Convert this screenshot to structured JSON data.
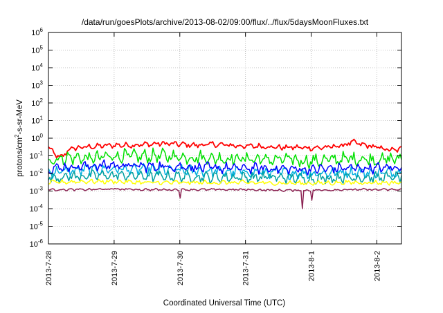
{
  "chart_data": {
    "type": "line",
    "title": "/data/run/goesPlots/archive/2013-08-02/09:00/flux/../flux/5daysMoonFluxes.txt",
    "xlabel": "Coordinated Universal Time (UTC)",
    "ylabel": {
      "base": "protons/cm",
      "sup": "2",
      "rest": "-s-sr-MeV"
    },
    "yscale": "log",
    "ylim": [
      1e-06,
      1000000.0
    ],
    "xlim": [
      "2013-07-28 00:00",
      "2013-08-02 09:00"
    ],
    "grid": true,
    "legend": "none",
    "y_ticks": [
      {
        "base": "10",
        "exp": "-6"
      },
      {
        "base": "10",
        "exp": "-5"
      },
      {
        "base": "10",
        "exp": "-4"
      },
      {
        "base": "10",
        "exp": "-3"
      },
      {
        "base": "10",
        "exp": "-2"
      },
      {
        "base": "10",
        "exp": "-1"
      },
      {
        "base": "10",
        "exp": "0"
      },
      {
        "base": "10",
        "exp": "1"
      },
      {
        "base": "10",
        "exp": "2"
      },
      {
        "base": "10",
        "exp": "3"
      },
      {
        "base": "10",
        "exp": "4"
      },
      {
        "base": "10",
        "exp": "5"
      },
      {
        "base": "10",
        "exp": "6"
      }
    ],
    "x_ticks": [
      "2013-7-28",
      "2013-7-29",
      "2013-7-30",
      "2013-7-31",
      "2013-8-1",
      "2013-8-2"
    ],
    "series": [
      {
        "color": "#ff0000",
        "x": [
          "2013-07-28 00:00",
          "2013-07-28 04:00",
          "2013-07-28 08:00",
          "2013-07-28 12:00",
          "2013-07-28 18:00",
          "2013-07-29 00:00",
          "2013-07-29 06:00",
          "2013-07-29 12:00",
          "2013-07-29 18:00",
          "2013-07-30 00:00",
          "2013-07-30 06:00",
          "2013-07-30 12:00",
          "2013-07-30 18:00",
          "2013-07-31 00:00",
          "2013-07-31 06:00",
          "2013-07-31 12:00",
          "2013-07-31 18:00",
          "2013-08-01 00:00",
          "2013-08-01 06:00",
          "2013-08-01 12:00",
          "2013-08-01 15:00",
          "2013-08-01 18:00",
          "2013-08-02 00:00",
          "2013-08-02 06:00",
          "2013-08-02 09:00"
        ],
        "values": [
          0.3,
          0.07,
          0.25,
          0.3,
          0.35,
          0.4,
          0.4,
          0.45,
          0.5,
          0.45,
          0.4,
          0.45,
          0.4,
          0.35,
          0.35,
          0.3,
          0.3,
          0.28,
          0.3,
          0.4,
          0.6,
          0.45,
          0.3,
          0.2,
          0.25
        ]
      },
      {
        "color": "#00e000",
        "x": [
          "2013-07-28 00:00",
          "2013-07-28 08:00",
          "2013-07-28 16:00",
          "2013-07-29 00:00",
          "2013-07-29 08:00",
          "2013-07-29 16:00",
          "2013-07-30 00:00",
          "2013-07-30 08:00",
          "2013-07-30 16:00",
          "2013-07-31 00:00",
          "2013-07-31 08:00",
          "2013-07-31 16:00",
          "2013-08-01 00:00",
          "2013-08-01 08:00",
          "2013-08-01 16:00",
          "2013-08-02 00:00",
          "2013-08-02 09:00"
        ],
        "values": [
          0.06,
          0.08,
          0.07,
          0.1,
          0.09,
          0.1,
          0.09,
          0.08,
          0.07,
          0.07,
          0.06,
          0.06,
          0.05,
          0.06,
          0.07,
          0.06,
          0.07
        ]
      },
      {
        "color": "#00b0e0",
        "x": [
          "2013-07-28 00:00",
          "2013-07-28 12:00",
          "2013-07-29 00:00",
          "2013-07-29 12:00",
          "2013-07-30 00:00",
          "2013-07-30 12:00",
          "2013-07-31 00:00",
          "2013-07-31 12:00",
          "2013-08-01 00:00",
          "2013-08-01 12:00",
          "2013-08-02 00:00",
          "2013-08-02 09:00"
        ],
        "values": [
          0.012,
          0.015,
          0.018,
          0.016,
          0.015,
          0.013,
          0.012,
          0.011,
          0.01,
          0.012,
          0.011,
          0.012
        ]
      },
      {
        "color": "#0000ff",
        "x": [
          "2013-07-28 00:00",
          "2013-07-28 12:00",
          "2013-07-29 00:00",
          "2013-07-29 12:00",
          "2013-07-30 00:00",
          "2013-07-30 12:00",
          "2013-07-31 00:00",
          "2013-07-31 12:00",
          "2013-08-01 00:00",
          "2013-08-01 12:00",
          "2013-08-02 00:00",
          "2013-08-02 09:00"
        ],
        "values": [
          0.02,
          0.025,
          0.03,
          0.025,
          0.025,
          0.02,
          0.02,
          0.018,
          0.017,
          0.02,
          0.02,
          0.022
        ]
      },
      {
        "color": "#00a0a0",
        "x": [
          "2013-07-28 00:00",
          "2013-07-28 12:00",
          "2013-07-29 00:00",
          "2013-07-29 12:00",
          "2013-07-30 00:00",
          "2013-07-30 12:00",
          "2013-07-31 00:00",
          "2013-07-31 12:00",
          "2013-08-01 00:00",
          "2013-08-01 12:00",
          "2013-08-02 00:00",
          "2013-08-02 09:00"
        ],
        "values": [
          0.006,
          0.007,
          0.008,
          0.007,
          0.007,
          0.006,
          0.006,
          0.006,
          0.005,
          0.006,
          0.006,
          0.006
        ]
      },
      {
        "color": "#ffff00",
        "x": [
          "2013-07-28 00:00",
          "2013-07-28 12:00",
          "2013-07-29 00:00",
          "2013-07-29 12:00",
          "2013-07-30 00:00",
          "2013-07-30 12:00",
          "2013-07-31 00:00",
          "2013-07-31 12:00",
          "2013-08-01 00:00",
          "2013-08-01 12:00",
          "2013-08-02 00:00",
          "2013-08-02 09:00"
        ],
        "values": [
          0.003,
          0.0035,
          0.0035,
          0.003,
          0.003,
          0.003,
          0.003,
          0.0028,
          0.0028,
          0.003,
          0.003,
          0.003
        ]
      },
      {
        "color": "#8b2252",
        "x": [
          "2013-07-28 00:00",
          "2013-07-28 12:00",
          "2013-07-29 00:00",
          "2013-07-29 12:00",
          "2013-07-30 00:00",
          "2013-07-30 12:00",
          "2013-07-31 00:00",
          "2013-07-31 12:00",
          "2013-08-01 00:00",
          "2013-08-01 12:00",
          "2013-08-02 00:00",
          "2013-08-02 09:00"
        ],
        "values": [
          0.0012,
          0.0012,
          0.0013,
          0.0012,
          0.0012,
          0.0012,
          0.0012,
          0.0011,
          0.0011,
          0.0012,
          0.0012,
          0.0012
        ]
      }
    ],
    "dips": [
      {
        "series": 6,
        "x": "2013-07-31 21:00",
        "value": 0.0001
      },
      {
        "series": 6,
        "x": "2013-08-01 00:30",
        "value": 0.0003
      },
      {
        "series": 6,
        "x": "2013-07-30 00:00",
        "value": 0.0004
      }
    ]
  }
}
